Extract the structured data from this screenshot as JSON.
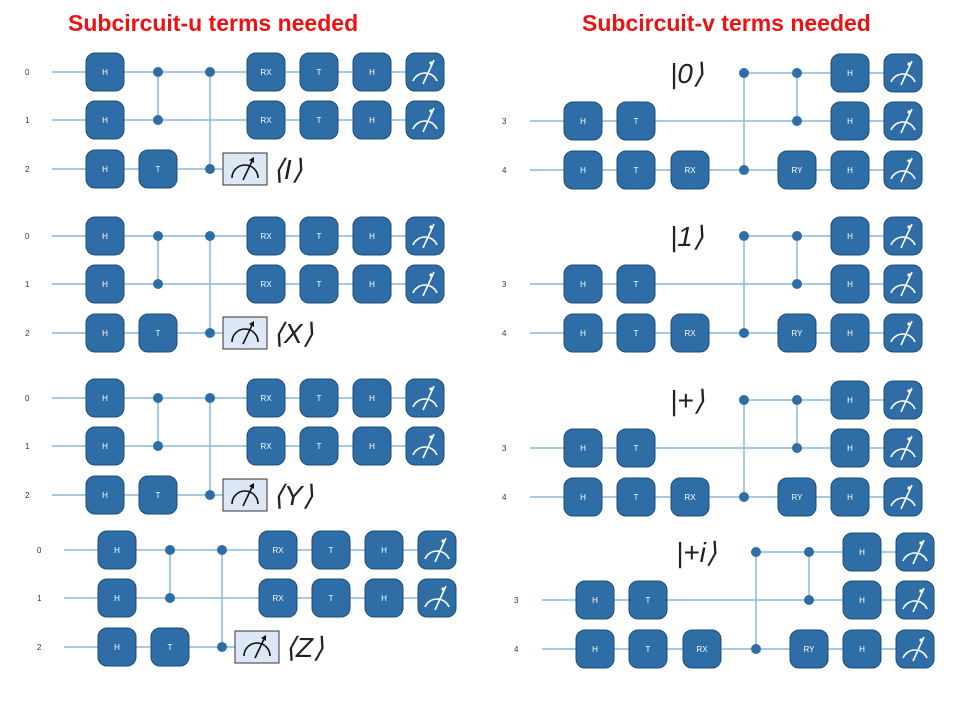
{
  "titles": {
    "left": "Subcircuit-u terms needed",
    "right": "Subcircuit-v terms needed"
  },
  "colors": {
    "gate_fill": "#2f6da6",
    "gate_stroke": "#1d4d7a",
    "wire": "#8ab8dc",
    "dot": "#2f6da6",
    "title": "#ee1111",
    "box_fill": "#dce8f6",
    "measure_icon": "measure-icon"
  },
  "u_circuit": {
    "qubit_labels": [
      "0",
      "1",
      "2"
    ],
    "gates": {
      "h": "H",
      "t": "T",
      "rx": "RX"
    },
    "terms": [
      {
        "name": "I",
        "label": "⟨I⟩"
      },
      {
        "name": "X",
        "label": "⟨X⟩"
      },
      {
        "name": "Y",
        "label": "⟨Y⟩"
      },
      {
        "name": "Z",
        "label": "⟨Z⟩"
      }
    ]
  },
  "v_circuit": {
    "qubit_labels": [
      "3",
      "4"
    ],
    "gates": {
      "h": "H",
      "t": "T",
      "rx": "RX",
      "ry": "RY"
    },
    "terms": [
      {
        "name": "0",
        "label": "|0⟩"
      },
      {
        "name": "1",
        "label": "|1⟩"
      },
      {
        "name": "plus",
        "label": "|+⟩"
      },
      {
        "name": "plus-i",
        "label": "|+i⟩"
      }
    ]
  }
}
